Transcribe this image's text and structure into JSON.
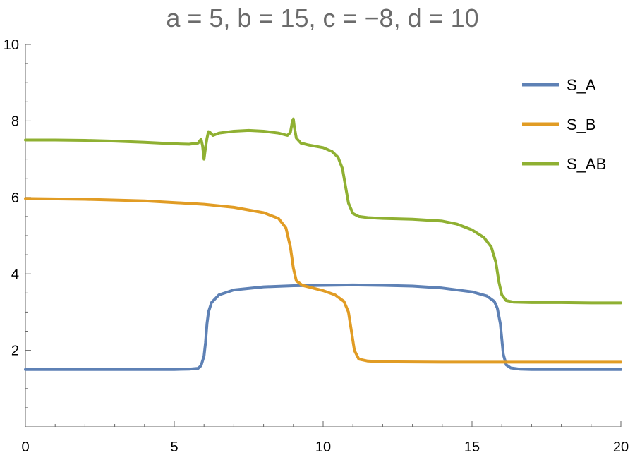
{
  "chart_data": {
    "type": "line",
    "title": "a = 5, b = 15, c = −8, d = 10",
    "xlabel": "",
    "ylabel": "",
    "xlim": [
      0,
      20
    ],
    "ylim": [
      0,
      10
    ],
    "x_ticks": [
      0,
      5,
      10,
      15,
      20
    ],
    "y_ticks": [
      2,
      4,
      6,
      8,
      10
    ],
    "legend_position": "top-right",
    "series": [
      {
        "name": "S_A",
        "color": "#5e81b5",
        "points": [
          [
            0,
            1.5
          ],
          [
            2,
            1.5
          ],
          [
            4,
            1.5
          ],
          [
            5,
            1.5
          ],
          [
            5.5,
            1.51
          ],
          [
            5.8,
            1.53
          ],
          [
            5.9,
            1.6
          ],
          [
            6.0,
            1.85
          ],
          [
            6.05,
            2.2
          ],
          [
            6.1,
            2.7
          ],
          [
            6.15,
            3.0
          ],
          [
            6.25,
            3.25
          ],
          [
            6.5,
            3.45
          ],
          [
            7,
            3.58
          ],
          [
            8,
            3.66
          ],
          [
            9,
            3.69
          ],
          [
            10,
            3.7
          ],
          [
            11,
            3.71
          ],
          [
            12,
            3.7
          ],
          [
            13,
            3.68
          ],
          [
            14,
            3.63
          ],
          [
            15,
            3.53
          ],
          [
            15.5,
            3.42
          ],
          [
            15.75,
            3.28
          ],
          [
            15.85,
            3.1
          ],
          [
            15.95,
            2.7
          ],
          [
            16.0,
            2.3
          ],
          [
            16.05,
            1.9
          ],
          [
            16.15,
            1.62
          ],
          [
            16.3,
            1.54
          ],
          [
            16.6,
            1.51
          ],
          [
            17,
            1.5
          ],
          [
            18,
            1.5
          ],
          [
            19,
            1.5
          ],
          [
            20,
            1.5
          ]
        ]
      },
      {
        "name": "S_B",
        "color": "#e19c24",
        "points": [
          [
            0,
            5.97
          ],
          [
            2,
            5.95
          ],
          [
            4,
            5.91
          ],
          [
            6,
            5.82
          ],
          [
            7,
            5.74
          ],
          [
            8,
            5.6
          ],
          [
            8.5,
            5.45
          ],
          [
            8.75,
            5.2
          ],
          [
            8.9,
            4.7
          ],
          [
            9.0,
            4.15
          ],
          [
            9.1,
            3.82
          ],
          [
            9.3,
            3.7
          ],
          [
            9.6,
            3.64
          ],
          [
            10,
            3.56
          ],
          [
            10.4,
            3.45
          ],
          [
            10.7,
            3.28
          ],
          [
            10.85,
            3.0
          ],
          [
            10.95,
            2.5
          ],
          [
            11.05,
            2.0
          ],
          [
            11.2,
            1.77
          ],
          [
            11.5,
            1.72
          ],
          [
            12,
            1.7
          ],
          [
            14,
            1.69
          ],
          [
            16,
            1.69
          ],
          [
            18,
            1.69
          ],
          [
            20,
            1.69
          ]
        ]
      },
      {
        "name": "S_AB",
        "color": "#8fb032",
        "points": [
          [
            0,
            7.5
          ],
          [
            1,
            7.5
          ],
          [
            2,
            7.49
          ],
          [
            3,
            7.47
          ],
          [
            4,
            7.44
          ],
          [
            5,
            7.4
          ],
          [
            5.5,
            7.39
          ],
          [
            5.8,
            7.42
          ],
          [
            5.9,
            7.52
          ],
          [
            5.95,
            7.35
          ],
          [
            6.0,
            7.0
          ],
          [
            6.05,
            7.3
          ],
          [
            6.1,
            7.55
          ],
          [
            6.15,
            7.72
          ],
          [
            6.2,
            7.7
          ],
          [
            6.3,
            7.62
          ],
          [
            6.5,
            7.68
          ],
          [
            7,
            7.73
          ],
          [
            7.5,
            7.75
          ],
          [
            8,
            7.73
          ],
          [
            8.5,
            7.68
          ],
          [
            8.8,
            7.62
          ],
          [
            8.9,
            7.7
          ],
          [
            8.97,
            8.0
          ],
          [
            9.0,
            8.05
          ],
          [
            9.03,
            7.85
          ],
          [
            9.1,
            7.55
          ],
          [
            9.25,
            7.42
          ],
          [
            9.5,
            7.37
          ],
          [
            10,
            7.3
          ],
          [
            10.3,
            7.2
          ],
          [
            10.5,
            7.05
          ],
          [
            10.65,
            6.75
          ],
          [
            10.75,
            6.3
          ],
          [
            10.85,
            5.85
          ],
          [
            11.0,
            5.58
          ],
          [
            11.2,
            5.5
          ],
          [
            11.5,
            5.47
          ],
          [
            12,
            5.45
          ],
          [
            13,
            5.43
          ],
          [
            14,
            5.38
          ],
          [
            14.5,
            5.3
          ],
          [
            15,
            5.15
          ],
          [
            15.4,
            4.95
          ],
          [
            15.65,
            4.7
          ],
          [
            15.8,
            4.3
          ],
          [
            15.9,
            3.8
          ],
          [
            16.0,
            3.45
          ],
          [
            16.15,
            3.3
          ],
          [
            16.4,
            3.26
          ],
          [
            17,
            3.25
          ],
          [
            18,
            3.25
          ],
          [
            19,
            3.24
          ],
          [
            20,
            3.24
          ]
        ]
      }
    ]
  }
}
